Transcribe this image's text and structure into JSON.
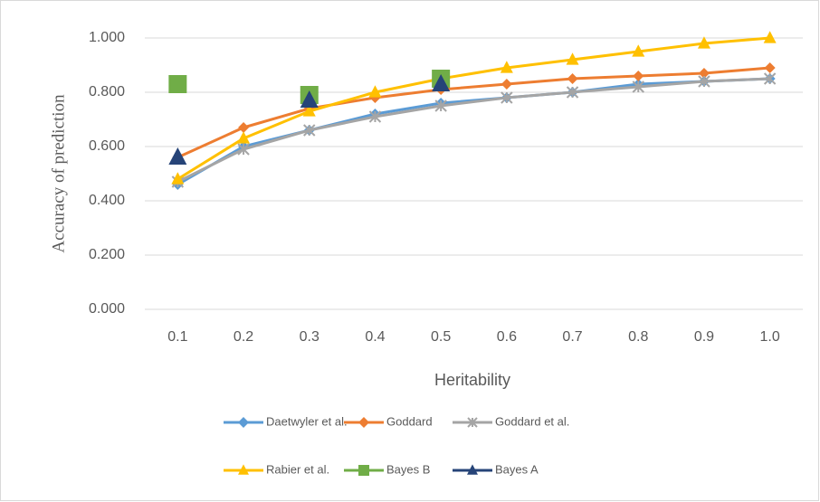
{
  "chart_data": {
    "type": "line",
    "y_label": "Accuracy of prediction",
    "x_label": "Heritability",
    "categories": [
      "0.1",
      "0.2",
      "0.3",
      "0.4",
      "0.5",
      "0.6",
      "0.7",
      "0.8",
      "0.9",
      "1.0"
    ],
    "ylim": [
      0,
      1
    ],
    "yticks": [
      {
        "value": 0,
        "label": "0.000"
      },
      {
        "value": 0.2,
        "label": "0.200"
      },
      {
        "value": 0.4,
        "label": "0.400"
      },
      {
        "value": 0.6,
        "label": "0.600"
      },
      {
        "value": 0.8,
        "label": "0.800"
      },
      {
        "value": 1,
        "label": "1.000"
      }
    ],
    "grid": true,
    "legend": "bottom",
    "series": [
      {
        "name": "Daetwyler et al.",
        "color": "#5b9bd5",
        "marker": "diamond",
        "values": [
          0.46,
          0.6,
          0.66,
          0.72,
          0.76,
          0.78,
          0.8,
          0.83,
          0.84,
          0.85
        ]
      },
      {
        "name": "Goddard",
        "color": "#ed7d31",
        "marker": "diamond",
        "values": [
          0.56,
          0.67,
          0.74,
          0.78,
          0.81,
          0.83,
          0.85,
          0.86,
          0.87,
          0.89
        ]
      },
      {
        "name": "Goddard et  al.",
        "color": "#a5a5a5",
        "marker": "star",
        "values": [
          0.47,
          0.59,
          0.66,
          0.71,
          0.75,
          0.78,
          0.8,
          0.82,
          0.84,
          0.85
        ]
      },
      {
        "name": "Rabier et al.",
        "color": "#ffc000",
        "marker": "triangle",
        "values": [
          0.48,
          0.63,
          0.73,
          0.8,
          0.85,
          0.89,
          0.92,
          0.95,
          0.98,
          1.0
        ]
      },
      {
        "name": "Bayes B",
        "color": "#70ad47",
        "marker": "square",
        "values": [
          0.83,
          null,
          0.79,
          null,
          0.85,
          null,
          null,
          null,
          null,
          null
        ]
      },
      {
        "name": "Bayes A",
        "color": "#264478",
        "marker": "triangle",
        "values": [
          0.56,
          null,
          0.77,
          null,
          0.83,
          null,
          null,
          null,
          null,
          null
        ]
      }
    ]
  }
}
